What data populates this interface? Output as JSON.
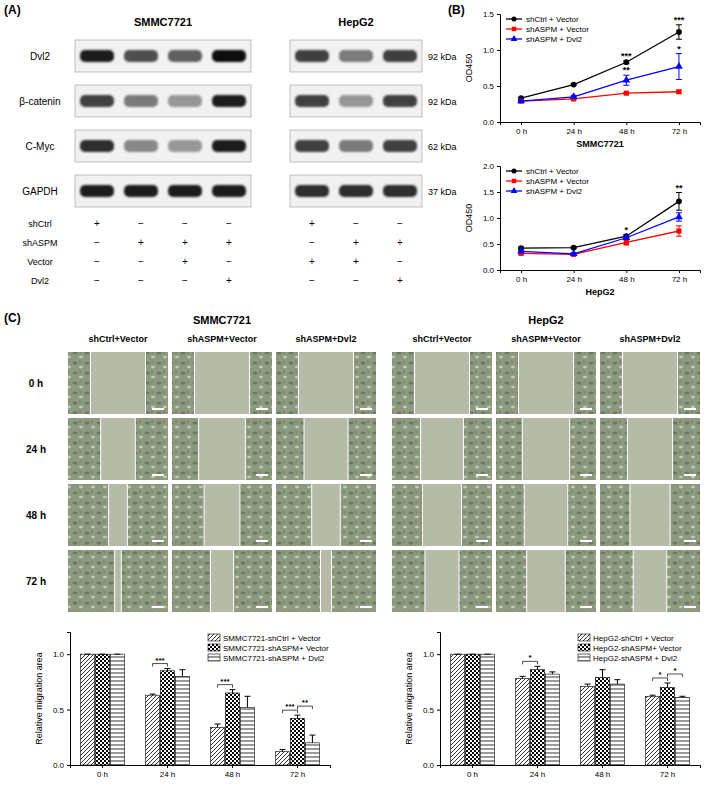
{
  "panel_labels": [
    "(A)",
    "(B)",
    "(C)"
  ],
  "blot": {
    "proteins": [
      "Dvl2",
      "β-catenin",
      "C-Myc",
      "GAPDH"
    ],
    "sizes": [
      "92 kDa",
      "92 kDa",
      "62 kDa",
      "37 kDa"
    ],
    "treatment_names": [
      "shCtrl",
      "shASPM",
      "Vector",
      "Dvl2"
    ],
    "groups": [
      {
        "name": "SMMC7721",
        "intensity": [
          [
            0.9,
            0.75,
            0.7,
            0.95
          ],
          [
            0.8,
            0.6,
            0.5,
            0.9
          ],
          [
            0.85,
            0.55,
            0.5,
            0.9
          ],
          [
            0.9,
            0.9,
            0.9,
            0.9
          ]
        ],
        "signs": [
          [
            "+",
            "−",
            "−",
            "−"
          ],
          [
            "−",
            "+",
            "+",
            "+"
          ],
          [
            "−",
            "−",
            "+",
            "−"
          ],
          [
            "−",
            "−",
            "−",
            "+"
          ]
        ]
      },
      {
        "name": "HepG2",
        "intensity": [
          [
            0.8,
            0.6,
            0.8
          ],
          [
            0.8,
            0.5,
            0.8
          ],
          [
            0.8,
            0.6,
            0.8
          ],
          [
            0.85,
            0.85,
            0.85
          ]
        ],
        "signs": [
          [
            "+",
            "−",
            "−"
          ],
          [
            "−",
            "+",
            "+"
          ],
          [
            "+",
            "+",
            "−"
          ],
          [
            "−",
            "−",
            "+"
          ]
        ]
      }
    ]
  },
  "wound": {
    "cell_lines": [
      "SMMC7721",
      "HepG2"
    ],
    "conditions": [
      "shCtrl+Vector",
      "shASPM+Vector",
      "shASPM+Dvl2"
    ],
    "times": [
      "0 h",
      "24 h",
      "48 h",
      "72 h"
    ]
  },
  "chart_data": [
    {
      "type": "line",
      "x_label": "SMMC7721",
      "y_label": "OD450",
      "categories": [
        "0 h",
        "24 h",
        "48 h",
        "72 h"
      ],
      "ylim": [
        0,
        1.5
      ],
      "yticks": [
        {
          "value": 0,
          "label": "0.0"
        },
        0.5,
        {
          "value": 1,
          "label": "1.0"
        },
        1.5
      ],
      "legend": "upper left",
      "series": [
        {
          "name": "shCtrl + Vector",
          "color": "#000000",
          "marker": "circle",
          "values": [
            0.33,
            0.52,
            0.83,
            1.25
          ],
          "errors": [
            0.01,
            0.01,
            0.02,
            0.1
          ],
          "annotations": [
            null,
            null,
            "***",
            "***"
          ]
        },
        {
          "name": "shASPM + Vector",
          "color": "#ff0000",
          "marker": "square",
          "values": [
            0.29,
            0.32,
            0.4,
            0.42
          ],
          "errors": [
            0.01,
            0.01,
            0.01,
            0.02
          ]
        },
        {
          "name": "shASPM + Dvl2",
          "color": "#0000ff",
          "marker": "triangle",
          "values": [
            0.29,
            0.35,
            0.58,
            0.77
          ],
          "errors": [
            0.01,
            0.02,
            0.07,
            0.18
          ],
          "annotations": [
            null,
            null,
            "**",
            "*"
          ]
        }
      ]
    },
    {
      "type": "line",
      "x_label": "HepG2",
      "y_label": "OD450",
      "categories": [
        "0 h",
        "24 h",
        "48 h",
        "72 h"
      ],
      "ylim": [
        0,
        2
      ],
      "yticks": [
        {
          "value": 0,
          "label": "0.0"
        },
        0.5,
        {
          "value": 1,
          "label": "1.0"
        },
        1.5,
        {
          "value": 2,
          "label": "2.0"
        }
      ],
      "legend": "upper left",
      "series": [
        {
          "name": "shCtrl + Vector",
          "color": "#000000",
          "marker": "circle",
          "values": [
            0.42,
            0.43,
            0.65,
            1.32
          ],
          "errors": [
            0.02,
            0.02,
            0.03,
            0.17
          ],
          "annotations": [
            null,
            null,
            "*",
            "**"
          ]
        },
        {
          "name": "shASPM + Vector",
          "color": "#ff0000",
          "marker": "square",
          "values": [
            0.32,
            0.3,
            0.53,
            0.75
          ],
          "errors": [
            0.02,
            0.02,
            0.05,
            0.1
          ]
        },
        {
          "name": "shASPM + Dvl2",
          "color": "#0000ff",
          "marker": "triangle",
          "values": [
            0.36,
            0.31,
            0.62,
            1.02
          ],
          "errors": [
            0.02,
            0.02,
            0.03,
            0.08
          ]
        }
      ]
    },
    {
      "type": "bar",
      "y_label": "Relative migration area",
      "categories": [
        "0 h",
        "24 h",
        "48 h",
        "72 h"
      ],
      "ylim": [
        0,
        1.2
      ],
      "yticks": [
        {
          "value": 0,
          "label": "0.0"
        },
        0.5,
        {
          "value": 1,
          "label": "1.0"
        }
      ],
      "legend": "upper right",
      "series": [
        {
          "name": "SMMC7721-shCtrl + Vector",
          "color": "#000000",
          "values": [
            1,
            0.63,
            0.34,
            0.12
          ],
          "errors": [
            0,
            0.01,
            0.03,
            0.02
          ]
        },
        {
          "name": "SMMC7721-shASPM+ Vector",
          "color": "#000000",
          "values": [
            1,
            0.85,
            0.65,
            0.42
          ],
          "errors": [
            0,
            0.02,
            0.03,
            0.03
          ]
        },
        {
          "name": "SMMC7721-shASPM + Dvl2",
          "color": "#000000",
          "values": [
            1,
            0.8,
            0.52,
            0.2
          ],
          "errors": [
            0,
            0.06,
            0.1,
            0.07
          ]
        }
      ],
      "brackets": [
        {
          "at": 1,
          "from": 0,
          "to": 1,
          "text": "***"
        },
        {
          "at": 2,
          "from": 0,
          "to": 1,
          "text": "***"
        },
        {
          "at": 3,
          "from": 0,
          "to": 1,
          "text": "***"
        },
        {
          "at": 3,
          "from": 1,
          "to": 2,
          "text": "**"
        }
      ]
    },
    {
      "type": "bar",
      "y_label": "Relative migration area",
      "categories": [
        "0 h",
        "24 h",
        "48 h",
        "72 h"
      ],
      "ylim": [
        0,
        1.2
      ],
      "yticks": [
        {
          "value": 0,
          "label": "0.0"
        },
        0.5,
        {
          "value": 1,
          "label": "1.0"
        }
      ],
      "legend": "upper right",
      "series": [
        {
          "name": "HepG2-shCtrl + Vector",
          "color": "#000000",
          "values": [
            1,
            0.78,
            0.71,
            0.62
          ],
          "errors": [
            0,
            0.02,
            0.02,
            0.01
          ]
        },
        {
          "name": "HepG2-shASPM+ Vector",
          "color": "#000000",
          "values": [
            1,
            0.86,
            0.79,
            0.7
          ],
          "errors": [
            0,
            0.03,
            0.07,
            0.04
          ]
        },
        {
          "name": "HepG2-shASPM + Dvl2",
          "color": "#000000",
          "values": [
            1,
            0.82,
            0.73,
            0.61
          ],
          "errors": [
            0,
            0.02,
            0.04,
            0.01
          ]
        }
      ],
      "brackets": [
        {
          "at": 1,
          "from": 0,
          "to": 1,
          "text": "*"
        },
        {
          "at": 3,
          "from": 0,
          "to": 1,
          "text": "*"
        },
        {
          "at": 3,
          "from": 1,
          "to": 2,
          "text": "*"
        }
      ]
    }
  ]
}
